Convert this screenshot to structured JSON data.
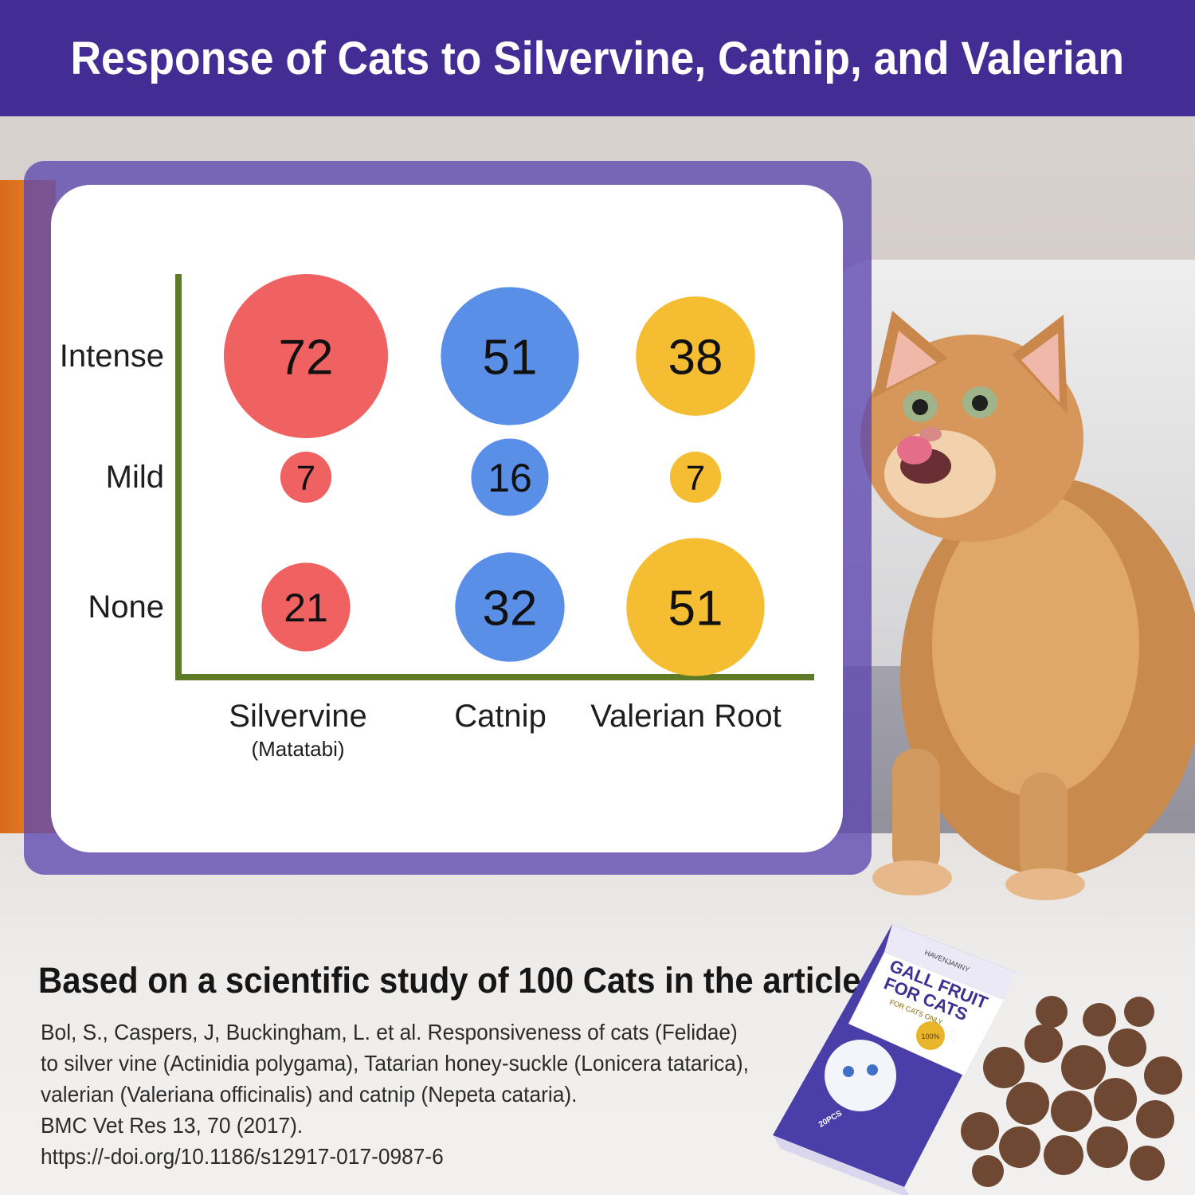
{
  "header": {
    "title": "Response of Cats to Silvervine, Catnip, and Valerian"
  },
  "chart_data": {
    "type": "bubble",
    "title": "",
    "xlabel": "",
    "ylabel": "",
    "categories": [
      {
        "label": "Silvervine",
        "sublabel": "(Matatabi)",
        "color": "#f06262"
      },
      {
        "label": "Catnip",
        "sublabel": "",
        "color": "#5a8fe8"
      },
      {
        "label": "Valerian Root",
        "sublabel": "",
        "color": "#f4bd32"
      }
    ],
    "rows": [
      "Intense",
      "Mild",
      "None"
    ],
    "series": [
      {
        "category": "Silvervine",
        "values": {
          "Intense": 72,
          "Mild": 7,
          "None": 21
        }
      },
      {
        "category": "Catnip",
        "values": {
          "Intense": 51,
          "Mild": 16,
          "None": 32
        }
      },
      {
        "category": "Valerian Root",
        "values": {
          "Intense": 38,
          "Mild": 7,
          "None": 51
        }
      }
    ],
    "axis_color": "#5d7b26",
    "grid": false,
    "legend": "none"
  },
  "study": {
    "title": "Based on a scientific study of 100 Cats in the article:",
    "reference_lines": [
      "Bol, S., Caspers, J, Buckingham, L. et al. Responsiveness of cats (Felidae)",
      "to silver vine (Actinidia polygama), Tatarian honey-suckle (Lonicera tatarica),",
      "valerian (Valeriana officinalis) and catnip (Nepeta cataria).",
      "BMC Vet Res 13, 70 (2017).",
      "https://-doi.org/10.1186/s12917-017-0987-6"
    ]
  },
  "product": {
    "brand": "HAVENJANNY",
    "name_line1": "GALL FRUIT",
    "name_line2": "FOR CATS",
    "tagline": "FOR CATS ONLY",
    "seal": "100%",
    "count": "20PCS"
  },
  "colors": {
    "header": "#432d94",
    "panel": "#5c46b0"
  }
}
